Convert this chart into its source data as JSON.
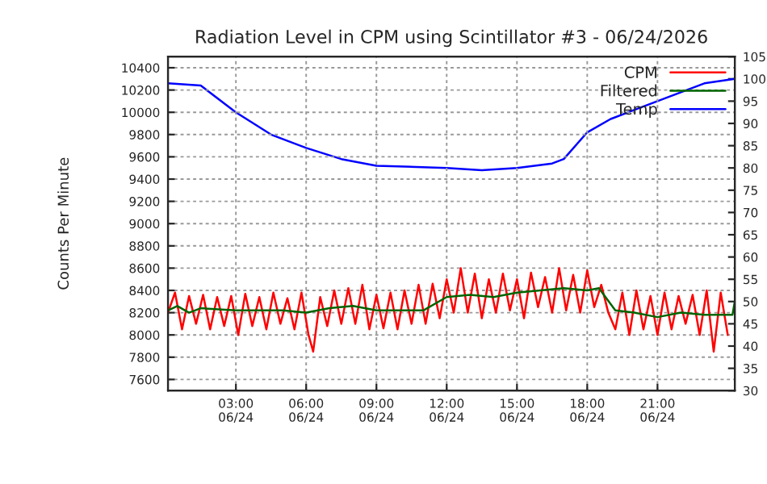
{
  "chart_data": {
    "type": "line",
    "title": "Radiation Level in CPM using Scintillator #3 - 06/24/2026",
    "ylabel": "Counts Per Minute",
    "xlim": [
      "2026-06-24T00:06",
      "2026-06-25T00:18"
    ],
    "xticks": [
      {
        "value": "2026-06-24T03:00",
        "label": "03:00\n06/24"
      },
      {
        "value": "2026-06-24T06:00",
        "label": "06:00\n06/24"
      },
      {
        "value": "2026-06-24T09:00",
        "label": "09:00\n06/24"
      },
      {
        "value": "2026-06-24T12:00",
        "label": "12:00\n06/24"
      },
      {
        "value": "2026-06-24T15:00",
        "label": "15:00\n06/24"
      },
      {
        "value": "2026-06-24T18:00",
        "label": "18:00\n06/24"
      },
      {
        "value": "2026-06-24T21:00",
        "label": "21:00\n06/24"
      }
    ],
    "ylim": [
      7500,
      10500
    ],
    "yticks": [
      7600,
      7800,
      8000,
      8200,
      8400,
      8600,
      8800,
      9000,
      9200,
      9400,
      9600,
      9800,
      10000,
      10200,
      10400
    ],
    "y2lim": [
      30,
      105
    ],
    "y2ticks": [
      30,
      35,
      40,
      45,
      50,
      55,
      60,
      65,
      70,
      75,
      80,
      85,
      90,
      95,
      100,
      105
    ],
    "grid": true,
    "legend": "top right",
    "series": [
      {
        "name": "CPM",
        "color": "#ff0000",
        "x": [
          "2026-06-24T00:06",
          "2026-06-24T00:24",
          "2026-06-24T00:42",
          "2026-06-24T01:00",
          "2026-06-24T01:18",
          "2026-06-24T01:36",
          "2026-06-24T01:54",
          "2026-06-24T02:12",
          "2026-06-24T02:30",
          "2026-06-24T02:48",
          "2026-06-24T03:06",
          "2026-06-24T03:24",
          "2026-06-24T03:42",
          "2026-06-24T04:00",
          "2026-06-24T04:18",
          "2026-06-24T04:36",
          "2026-06-24T04:54",
          "2026-06-24T05:12",
          "2026-06-24T05:30",
          "2026-06-24T05:48",
          "2026-06-24T06:06",
          "2026-06-24T06:18",
          "2026-06-24T06:36",
          "2026-06-24T06:54",
          "2026-06-24T07:12",
          "2026-06-24T07:30",
          "2026-06-24T07:48",
          "2026-06-24T08:06",
          "2026-06-24T08:24",
          "2026-06-24T08:42",
          "2026-06-24T09:00",
          "2026-06-24T09:18",
          "2026-06-24T09:36",
          "2026-06-24T09:54",
          "2026-06-24T10:12",
          "2026-06-24T10:30",
          "2026-06-24T10:48",
          "2026-06-24T11:06",
          "2026-06-24T11:24",
          "2026-06-24T11:42",
          "2026-06-24T12:00",
          "2026-06-24T12:18",
          "2026-06-24T12:36",
          "2026-06-24T12:54",
          "2026-06-24T13:12",
          "2026-06-24T13:30",
          "2026-06-24T13:48",
          "2026-06-24T14:06",
          "2026-06-24T14:24",
          "2026-06-24T14:42",
          "2026-06-24T15:00",
          "2026-06-24T15:18",
          "2026-06-24T15:36",
          "2026-06-24T15:54",
          "2026-06-24T16:12",
          "2026-06-24T16:30",
          "2026-06-24T16:48",
          "2026-06-24T17:06",
          "2026-06-24T17:24",
          "2026-06-24T17:42",
          "2026-06-24T18:00",
          "2026-06-24T18:18",
          "2026-06-24T18:36",
          "2026-06-24T18:54",
          "2026-06-24T19:12",
          "2026-06-24T19:30",
          "2026-06-24T19:48",
          "2026-06-24T20:06",
          "2026-06-24T20:24",
          "2026-06-24T20:42",
          "2026-06-24T21:00",
          "2026-06-24T21:18",
          "2026-06-24T21:36",
          "2026-06-24T21:54",
          "2026-06-24T22:12",
          "2026-06-24T22:30",
          "2026-06-24T22:48",
          "2026-06-24T23:06",
          "2026-06-24T23:24",
          "2026-06-24T23:42",
          "2026-06-25T00:00"
        ],
        "values": [
          8200,
          8380,
          8050,
          8350,
          8100,
          8360,
          8050,
          8340,
          8080,
          8350,
          8000,
          8370,
          8080,
          8340,
          8050,
          8380,
          8100,
          8330,
          8050,
          8380,
          8000,
          7850,
          8340,
          8080,
          8400,
          8100,
          8420,
          8100,
          8450,
          8050,
          8360,
          8060,
          8380,
          8050,
          8400,
          8100,
          8450,
          8100,
          8460,
          8150,
          8500,
          8200,
          8600,
          8200,
          8550,
          8150,
          8500,
          8200,
          8550,
          8220,
          8500,
          8150,
          8560,
          8250,
          8520,
          8200,
          8600,
          8220,
          8540,
          8200,
          8580,
          8250,
          8450,
          8200,
          8050,
          8380,
          8000,
          8400,
          8050,
          8350,
          8000,
          8380,
          8050,
          8350,
          8100,
          8360,
          8000,
          8400,
          7850,
          8380,
          8000
        ]
      },
      {
        "name": "Filtered",
        "color": "#006400",
        "x": [
          "2026-06-24T00:06",
          "2026-06-24T00:30",
          "2026-06-24T01:00",
          "2026-06-24T01:30",
          "2026-06-24T03:00",
          "2026-06-24T05:00",
          "2026-06-24T06:00",
          "2026-06-24T07:00",
          "2026-06-24T08:00",
          "2026-06-24T09:00",
          "2026-06-24T11:00",
          "2026-06-24T12:00",
          "2026-06-24T13:00",
          "2026-06-24T14:00",
          "2026-06-24T15:00",
          "2026-06-24T16:00",
          "2026-06-24T17:00",
          "2026-06-24T18:00",
          "2026-06-24T18:30",
          "2026-06-24T19:12",
          "2026-06-24T20:00",
          "2026-06-24T21:00",
          "2026-06-24T22:00",
          "2026-06-24T23:00",
          "2026-06-25T00:12",
          "2026-06-25T00:18"
        ],
        "values": [
          8220,
          8260,
          8200,
          8240,
          8220,
          8220,
          8200,
          8240,
          8260,
          8220,
          8220,
          8340,
          8360,
          8340,
          8380,
          8400,
          8420,
          8400,
          8420,
          8220,
          8200,
          8160,
          8200,
          8180,
          8180,
          8300
        ]
      },
      {
        "name": "Temp",
        "color": "#0000ff",
        "axis": "y2",
        "x": [
          "2026-06-24T00:06",
          "2026-06-24T01:30",
          "2026-06-24T03:00",
          "2026-06-24T04:30",
          "2026-06-24T06:00",
          "2026-06-24T07:30",
          "2026-06-24T09:00",
          "2026-06-24T12:00",
          "2026-06-24T13:30",
          "2026-06-24T15:00",
          "2026-06-24T16:30",
          "2026-06-24T17:00",
          "2026-06-24T18:00",
          "2026-06-24T19:00",
          "2026-06-24T20:00",
          "2026-06-24T21:00",
          "2026-06-24T22:00",
          "2026-06-24T23:00",
          "2026-06-25T00:18"
        ],
        "values": [
          99,
          98.5,
          92.5,
          87.5,
          84.5,
          82,
          80.5,
          80,
          79.5,
          80,
          81,
          82,
          88,
          91,
          93,
          95,
          97,
          99,
          100
        ]
      }
    ]
  }
}
